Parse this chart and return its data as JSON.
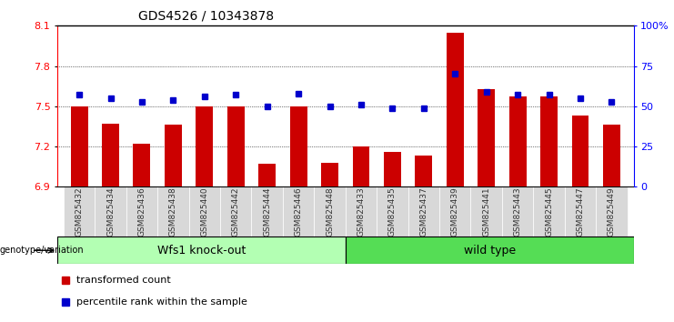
{
  "title": "GDS4526 / 10343878",
  "categories": [
    "GSM825432",
    "GSM825434",
    "GSM825436",
    "GSM825438",
    "GSM825440",
    "GSM825442",
    "GSM825444",
    "GSM825446",
    "GSM825448",
    "GSM825433",
    "GSM825435",
    "GSM825437",
    "GSM825439",
    "GSM825441",
    "GSM825443",
    "GSM825445",
    "GSM825447",
    "GSM825449"
  ],
  "red_values": [
    7.5,
    7.37,
    7.22,
    7.36,
    7.5,
    7.5,
    7.07,
    7.5,
    7.08,
    7.2,
    7.16,
    7.13,
    8.05,
    7.63,
    7.57,
    7.57,
    7.43,
    7.36
  ],
  "blue_values": [
    57,
    55,
    53,
    54,
    56,
    57,
    50,
    58,
    50,
    51,
    49,
    49,
    70,
    59,
    57,
    57,
    55,
    53
  ],
  "group1_label": "Wfs1 knock-out",
  "group2_label": "wild type",
  "group1_count": 9,
  "group2_count": 9,
  "ylim_left": [
    6.9,
    8.1
  ],
  "ylim_right": [
    0,
    100
  ],
  "yticks_left": [
    6.9,
    7.2,
    7.5,
    7.8,
    8.1
  ],
  "yticks_right": [
    0,
    25,
    50,
    75,
    100
  ],
  "bar_color": "#cc0000",
  "dot_color": "#0000cc",
  "group1_bg": "#b3ffb3",
  "group2_bg": "#55dd55",
  "legend_red": "transformed count",
  "legend_blue": "percentile rank within the sample"
}
